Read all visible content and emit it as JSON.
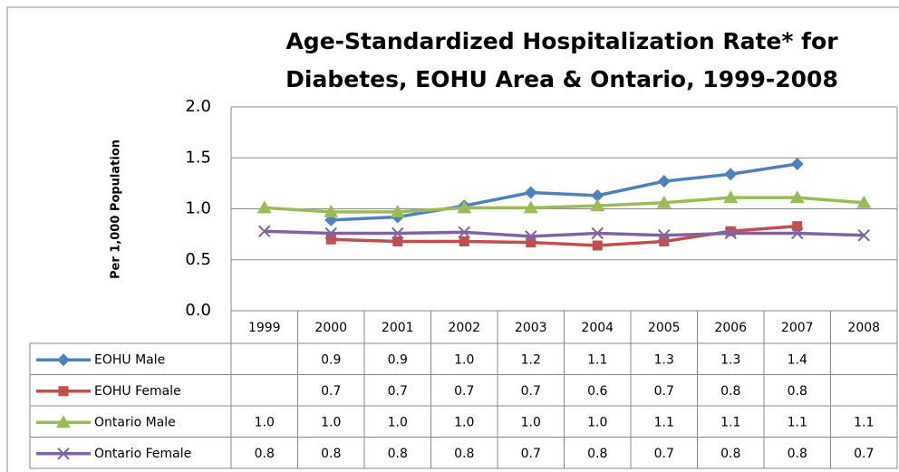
{
  "chart_data": {
    "type": "line",
    "title": "Age-Standardized Hospitalization Rate* for Diabetes, EOHU Area & Ontario, 1999-2008",
    "title_lines": [
      "Age-Standardized Hospitalization Rate* for",
      "Diabetes, EOHU Area & Ontario, 1999-2008"
    ],
    "y_label": "Per 1,000 Population",
    "categories": [
      "1999",
      "2000",
      "2001",
      "2002",
      "2003",
      "2004",
      "2005",
      "2006",
      "2007",
      "2008"
    ],
    "ylim": [
      0,
      2
    ],
    "yticks": [
      {
        "value": 0,
        "label": "0.0"
      },
      {
        "value": 0.5,
        "label": "0.5"
      },
      {
        "value": 1,
        "label": "1.0"
      },
      {
        "value": 1.5,
        "label": "1.5"
      },
      {
        "value": 2,
        "label": "2.0"
      }
    ],
    "grid": true,
    "series": [
      {
        "name": "EOHU Male",
        "color": "#4f81bd",
        "marker": "diamond",
        "values": [
          null,
          0.89,
          0.92,
          1.03,
          1.16,
          1.13,
          1.27,
          1.34,
          1.44,
          null
        ],
        "value_labels": [
          null,
          "0.9",
          "0.9",
          "1.0",
          "1.2",
          "1.1",
          "1.3",
          "1.3",
          "1.4",
          null
        ]
      },
      {
        "name": "EOHU Female",
        "color": "#c0504d",
        "marker": "square",
        "values": [
          null,
          0.7,
          0.68,
          0.68,
          0.67,
          0.64,
          0.68,
          0.78,
          0.83,
          null
        ],
        "value_labels": [
          null,
          "0.7",
          "0.7",
          "0.7",
          "0.7",
          "0.6",
          "0.7",
          "0.8",
          "0.8",
          null
        ]
      },
      {
        "name": "Ontario Male",
        "color": "#9bbb59",
        "marker": "triangle",
        "values": [
          1.01,
          0.97,
          0.97,
          1.01,
          1.01,
          1.03,
          1.06,
          1.11,
          1.11,
          1.06
        ],
        "value_labels": [
          "1.0",
          "1.0",
          "1.0",
          "1.0",
          "1.0",
          "1.0",
          "1.1",
          "1.1",
          "1.1",
          "1.1"
        ]
      },
      {
        "name": "Ontario Female",
        "color": "#8064a2",
        "marker": "x",
        "values": [
          0.78,
          0.76,
          0.76,
          0.77,
          0.73,
          0.76,
          0.74,
          0.76,
          0.76,
          0.74
        ],
        "value_labels": [
          "0.8",
          "0.8",
          "0.8",
          "0.8",
          "0.7",
          "0.8",
          "0.7",
          "0.8",
          "0.8",
          "0.7"
        ]
      }
    ]
  }
}
